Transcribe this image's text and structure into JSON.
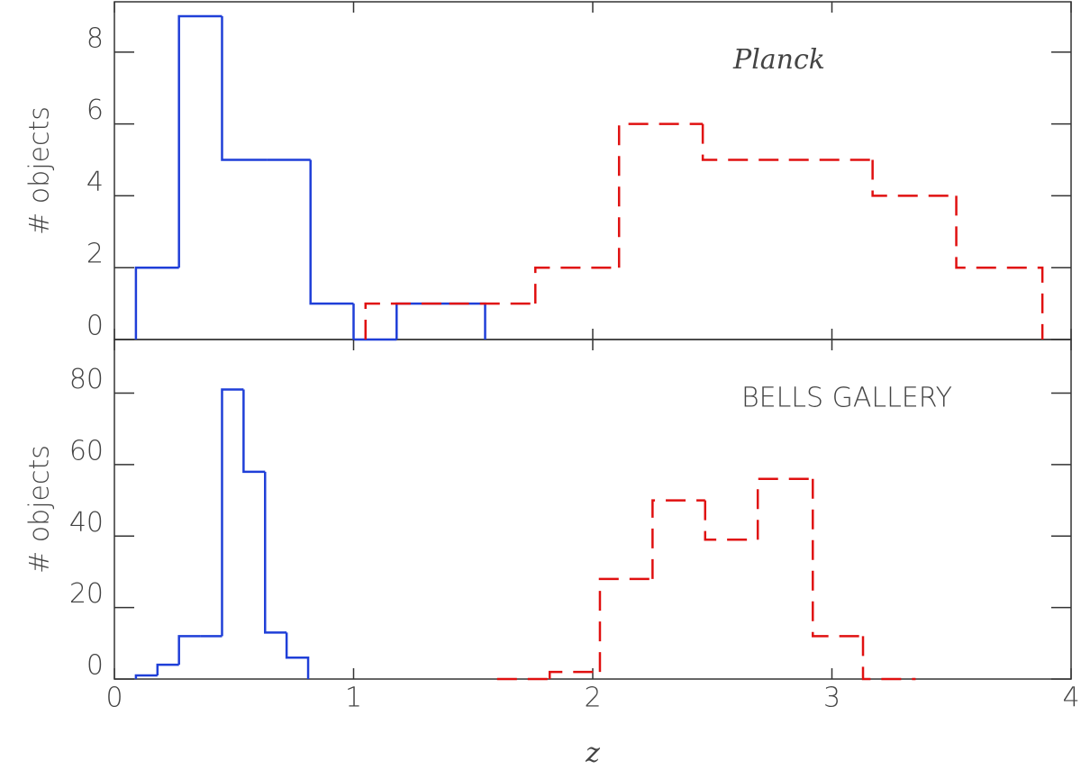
{
  "chart_data": [
    {
      "type": "histogram",
      "annotation": "Planck",
      "ylabel": "# objects",
      "xlim": [
        0,
        4
      ],
      "xticks": [
        0,
        1,
        2,
        3,
        4
      ],
      "ylim": [
        0,
        9.4
      ],
      "yticks": [
        0,
        2,
        4,
        6,
        8
      ],
      "series": [
        {
          "color": "#1f3fd8",
          "linestyle": "solid",
          "bins": [
            0.09,
            0.27,
            0.45,
            0.64,
            0.82,
            1.0,
            1.18,
            1.36,
            1.55
          ],
          "values": [
            2,
            9,
            5,
            5,
            1,
            0,
            1,
            1
          ]
        },
        {
          "color": "#e01010",
          "linestyle": "dashed",
          "bins": [
            1.05,
            1.4,
            1.76,
            2.11,
            2.46,
            2.82,
            3.17,
            3.52,
            3.88
          ],
          "values": [
            1,
            1,
            2,
            6,
            5,
            5,
            4,
            2
          ]
        }
      ]
    },
    {
      "type": "histogram",
      "annotation": "BELLS GALLERY",
      "ylabel": "# objects",
      "xlabel": "z",
      "xlim": [
        0,
        4
      ],
      "xticks": [
        0,
        1,
        2,
        3,
        4
      ],
      "ylim": [
        0,
        95
      ],
      "yticks": [
        0,
        20,
        40,
        60,
        80
      ],
      "series": [
        {
          "color": "#1f3fd8",
          "linestyle": "solid",
          "bins": [
            0.09,
            0.18,
            0.27,
            0.36,
            0.45,
            0.54,
            0.63,
            0.72,
            0.81
          ],
          "values": [
            1,
            4,
            12,
            12,
            81,
            58,
            13,
            6
          ]
        },
        {
          "color": "#e01010",
          "linestyle": "dashed",
          "bins": [
            1.6,
            1.82,
            2.03,
            2.25,
            2.47,
            2.69,
            2.92,
            3.13,
            3.35
          ],
          "values": [
            0,
            2,
            28,
            50,
            39,
            56,
            12,
            0
          ]
        }
      ]
    }
  ]
}
